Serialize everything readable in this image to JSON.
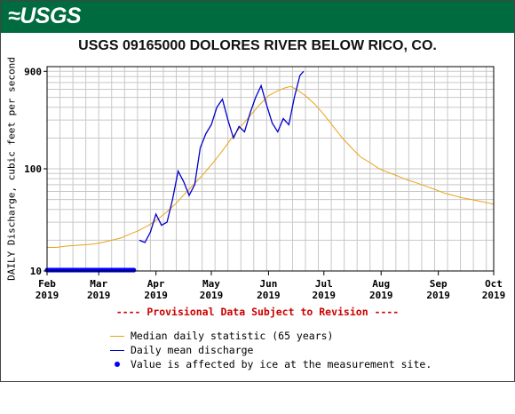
{
  "header": {
    "logo_text": "≈USGS",
    "brand_color": "#006b3f"
  },
  "chart_data": {
    "type": "line",
    "title": "USGS 09165000 DOLORES RIVER BELOW RICO, CO.",
    "ylabel": "DAILY Discharge, cubic feet per second",
    "xlabel": "",
    "y_scale": "log",
    "ylim": [
      10,
      1000
    ],
    "xlim": [
      "2019-02-01",
      "2019-10-01"
    ],
    "y_ticks": [
      {
        "value": 10,
        "label": "10"
      },
      {
        "value": 100,
        "label": "100"
      },
      {
        "value": 900,
        "label": "900"
      }
    ],
    "x_ticks": [
      {
        "date": "2019-02-01",
        "month": "Feb",
        "year": "2019"
      },
      {
        "date": "2019-03-01",
        "month": "Mar",
        "year": "2019"
      },
      {
        "date": "2019-04-01",
        "month": "Apr",
        "year": "2019"
      },
      {
        "date": "2019-05-01",
        "month": "May",
        "year": "2019"
      },
      {
        "date": "2019-06-01",
        "month": "Jun",
        "year": "2019"
      },
      {
        "date": "2019-07-01",
        "month": "Jul",
        "year": "2019"
      },
      {
        "date": "2019-08-01",
        "month": "Aug",
        "year": "2019"
      },
      {
        "date": "2019-09-01",
        "month": "Sep",
        "year": "2019"
      },
      {
        "date": "2019-10-01",
        "month": "Oct",
        "year": "2019"
      }
    ],
    "grid": true,
    "series": [
      {
        "name": "Median daily statistic (65 years)",
        "color": "#e8a317",
        "points": [
          [
            "2019-02-01",
            17
          ],
          [
            "2019-02-06",
            17
          ],
          [
            "2019-02-11",
            17.5
          ],
          [
            "2019-02-16",
            17.8
          ],
          [
            "2019-02-21",
            18
          ],
          [
            "2019-02-26",
            18.3
          ],
          [
            "2019-03-03",
            19
          ],
          [
            "2019-03-08",
            20
          ],
          [
            "2019-03-13",
            21
          ],
          [
            "2019-03-18",
            23
          ],
          [
            "2019-03-23",
            25
          ],
          [
            "2019-03-28",
            28
          ],
          [
            "2019-04-02",
            32
          ],
          [
            "2019-04-07",
            38
          ],
          [
            "2019-04-12",
            46
          ],
          [
            "2019-04-17",
            58
          ],
          [
            "2019-04-22",
            72
          ],
          [
            "2019-04-27",
            90
          ],
          [
            "2019-05-02",
            115
          ],
          [
            "2019-05-07",
            150
          ],
          [
            "2019-05-12",
            200
          ],
          [
            "2019-05-17",
            260
          ],
          [
            "2019-05-22",
            330
          ],
          [
            "2019-05-27",
            420
          ],
          [
            "2019-06-01",
            520
          ],
          [
            "2019-06-06",
            580
          ],
          [
            "2019-06-10",
            620
          ],
          [
            "2019-06-13",
            640
          ],
          [
            "2019-06-16",
            600
          ],
          [
            "2019-06-21",
            520
          ],
          [
            "2019-06-26",
            430
          ],
          [
            "2019-07-01",
            340
          ],
          [
            "2019-07-06",
            260
          ],
          [
            "2019-07-11",
            200
          ],
          [
            "2019-07-16",
            160
          ],
          [
            "2019-07-21",
            130
          ],
          [
            "2019-07-26",
            115
          ],
          [
            "2019-07-31",
            100
          ],
          [
            "2019-08-05",
            92
          ],
          [
            "2019-08-10",
            85
          ],
          [
            "2019-08-15",
            78
          ],
          [
            "2019-08-20",
            73
          ],
          [
            "2019-08-25",
            68
          ],
          [
            "2019-08-30",
            63
          ],
          [
            "2019-09-04",
            58
          ],
          [
            "2019-09-09",
            55
          ],
          [
            "2019-09-14",
            52
          ],
          [
            "2019-09-19",
            50
          ],
          [
            "2019-09-24",
            48
          ],
          [
            "2019-09-29",
            46
          ],
          [
            "2019-10-01",
            45
          ]
        ]
      },
      {
        "name": "Daily mean discharge",
        "color": "#0000cc",
        "points": [
          [
            "2019-03-23",
            20
          ],
          [
            "2019-03-26",
            19
          ],
          [
            "2019-03-29",
            24
          ],
          [
            "2019-04-01",
            36
          ],
          [
            "2019-04-04",
            28
          ],
          [
            "2019-04-07",
            30
          ],
          [
            "2019-04-10",
            50
          ],
          [
            "2019-04-13",
            95
          ],
          [
            "2019-04-16",
            75
          ],
          [
            "2019-04-19",
            55
          ],
          [
            "2019-04-22",
            70
          ],
          [
            "2019-04-25",
            160
          ],
          [
            "2019-04-28",
            220
          ],
          [
            "2019-05-01",
            270
          ],
          [
            "2019-05-04",
            400
          ],
          [
            "2019-05-07",
            480
          ],
          [
            "2019-05-10",
            300
          ],
          [
            "2019-05-13",
            200
          ],
          [
            "2019-05-16",
            260
          ],
          [
            "2019-05-19",
            230
          ],
          [
            "2019-05-22",
            350
          ],
          [
            "2019-05-25",
            500
          ],
          [
            "2019-05-28",
            650
          ],
          [
            "2019-05-31",
            420
          ],
          [
            "2019-06-03",
            280
          ],
          [
            "2019-06-06",
            230
          ],
          [
            "2019-06-09",
            310
          ],
          [
            "2019-06-12",
            270
          ],
          [
            "2019-06-15",
            500
          ],
          [
            "2019-06-18",
            820
          ],
          [
            "2019-06-20",
            900
          ]
        ]
      },
      {
        "name": "Value is affected by ice at the measurement site.",
        "color": "#0000ff",
        "marker": "dot",
        "value": 10,
        "range": [
          "2019-02-01",
          "2019-03-20"
        ]
      }
    ]
  },
  "footer": {
    "provisional": "---- Provisional Data Subject to Revision ----",
    "provisional_color": "#cc0000"
  },
  "legend": {
    "items": [
      {
        "label": "Median daily statistic (65 years)",
        "kind": "line",
        "color": "#e8a317"
      },
      {
        "label": "Daily mean discharge",
        "kind": "line",
        "color": "#0000cc"
      },
      {
        "label": "Value is affected by ice at the measurement site.",
        "kind": "dot",
        "color": "#0000ff"
      }
    ]
  }
}
